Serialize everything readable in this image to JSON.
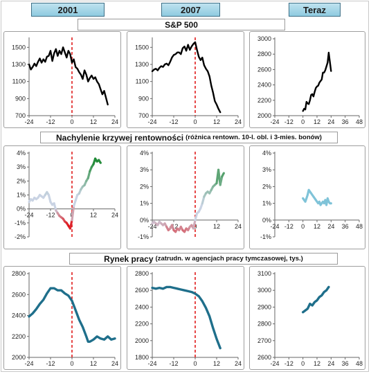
{
  "headers": {
    "col1": "2001",
    "col2": "2007",
    "col3": "Teraz"
  },
  "sections": {
    "sp500": {
      "title": "S&P 500",
      "subtitle": ""
    },
    "yield": {
      "title": "Nachylenie krzywej rentowności",
      "subtitle": "(różnica rentown. 10-l. obl. i 3-mies. bonów)"
    },
    "labor": {
      "title": "Rynek pracy",
      "subtitle": "(zatrudn. w agencjach pracy tymczasowej, tys.)"
    }
  },
  "colors": {
    "sp500_line": "#000000",
    "labor_line": "#1f6f8b",
    "current_yield_line": "#7fc3d8",
    "yield_gradient_low": "#e0151b",
    "yield_gradient_mid": "#c9d3e3",
    "yield_gradient_high": "#1f8a35",
    "event_line": "#e01a1a"
  },
  "chart_data": [
    {
      "id": "sp500-2001",
      "type": "line",
      "xlim": [
        -24,
        24
      ],
      "xticks": [
        -24,
        -12,
        0,
        12,
        24
      ],
      "ylim": [
        700,
        1600
      ],
      "yticks": [
        700,
        900,
        1100,
        1300,
        1500
      ],
      "event_line_x": 0,
      "style": "black",
      "x": [
        -24,
        -23,
        -22,
        -21,
        -20,
        -19,
        -18,
        -17,
        -16,
        -15,
        -14,
        -13,
        -12,
        -11,
        -10,
        -9,
        -8,
        -7,
        -6,
        -5,
        -4,
        -3,
        -2,
        -1,
        0,
        1,
        2,
        3,
        4,
        5,
        6,
        7,
        8,
        9,
        10,
        11,
        12,
        13,
        14,
        15,
        16,
        17,
        18,
        19,
        20
      ],
      "y": [
        1300,
        1240,
        1270,
        1310,
        1280,
        1330,
        1370,
        1320,
        1360,
        1330,
        1390,
        1400,
        1460,
        1340,
        1430,
        1480,
        1400,
        1460,
        1420,
        1500,
        1440,
        1380,
        1460,
        1420,
        1320,
        1360,
        1270,
        1250,
        1210,
        1180,
        1130,
        1230,
        1180,
        1100,
        1140,
        1170,
        1130,
        1150,
        1100,
        1070,
        1010,
        950,
        990,
        910,
        830
      ]
    },
    {
      "id": "sp500-2007",
      "type": "line",
      "xlim": [
        -24,
        24
      ],
      "xticks": [
        -24,
        -12,
        0,
        12,
        24
      ],
      "ylim": [
        700,
        1600
      ],
      "yticks": [
        700,
        900,
        1100,
        1300,
        1500
      ],
      "event_line_x": 0,
      "style": "black",
      "x": [
        -24,
        -23,
        -22,
        -21,
        -20,
        -19,
        -18,
        -17,
        -16,
        -15,
        -14,
        -13,
        -12,
        -11,
        -10,
        -9,
        -8,
        -7,
        -6,
        -5,
        -4,
        -3,
        -2,
        -1,
        0,
        1,
        2,
        3,
        4,
        5,
        6,
        7,
        8,
        9,
        10,
        11,
        12,
        13,
        14
      ],
      "y": [
        1220,
        1240,
        1250,
        1230,
        1260,
        1280,
        1270,
        1300,
        1310,
        1290,
        1330,
        1380,
        1410,
        1420,
        1440,
        1440,
        1420,
        1490,
        1510,
        1460,
        1530,
        1470,
        1510,
        1540,
        1560,
        1470,
        1390,
        1350,
        1380,
        1290,
        1250,
        1220,
        1160,
        1050,
        970,
        870,
        830,
        780,
        740
      ]
    },
    {
      "id": "sp500-now",
      "type": "line",
      "xlim": [
        -24,
        48
      ],
      "xticks": [
        -24,
        -12,
        0,
        12,
        24,
        36,
        48
      ],
      "ylim": [
        2000,
        3000
      ],
      "yticks": [
        2000,
        2200,
        2400,
        2600,
        2800,
        3000
      ],
      "style": "black",
      "x": [
        0,
        1,
        2,
        3,
        4,
        5,
        6,
        7,
        8,
        9,
        10,
        11,
        12,
        13,
        14,
        15,
        16,
        17,
        18,
        19,
        20,
        21,
        22,
        23,
        24
      ],
      "y": [
        2060,
        2090,
        2080,
        2180,
        2160,
        2150,
        2200,
        2270,
        2280,
        2250,
        2310,
        2360,
        2380,
        2390,
        2430,
        2450,
        2470,
        2560,
        2560,
        2590,
        2640,
        2690,
        2820,
        2700,
        2580
      ]
    },
    {
      "id": "yield-2001",
      "type": "line",
      "xlim": [
        -24,
        24
      ],
      "xticks": [
        -24,
        -12,
        0,
        12,
        24
      ],
      "ylim": [
        -2,
        4
      ],
      "yticks": [
        -2,
        -1,
        0,
        1,
        2,
        3,
        4
      ],
      "yformat": "percent",
      "event_line_x": 0,
      "style": "gradient",
      "x": [
        -24,
        -23,
        -22,
        -21,
        -20,
        -19,
        -18,
        -17,
        -16,
        -15,
        -14,
        -13,
        -12,
        -11,
        -10,
        -9,
        -8,
        -7,
        -6,
        -5,
        -4,
        -3,
        -2,
        -1,
        0,
        1,
        2,
        3,
        4,
        5,
        6,
        7,
        8,
        9,
        10,
        11,
        12,
        13,
        14,
        15,
        16
      ],
      "y": [
        0.5,
        0.7,
        0.6,
        0.8,
        0.7,
        0.8,
        1.0,
        0.9,
        0.8,
        1.0,
        1.2,
        1.0,
        0.5,
        0.3,
        0.4,
        -0.1,
        -0.3,
        -0.5,
        -0.6,
        -0.7,
        -0.9,
        -1.0,
        -1.2,
        -1.4,
        -0.8,
        0.2,
        0.6,
        1.0,
        1.1,
        1.4,
        1.6,
        1.7,
        2.0,
        2.2,
        2.7,
        3.0,
        3.2,
        3.6,
        3.4,
        3.5,
        3.3
      ]
    },
    {
      "id": "yield-2007",
      "type": "line",
      "xlim": [
        -24,
        24
      ],
      "xticks": [
        -24,
        -12,
        0,
        12,
        24
      ],
      "ylim": [
        -1,
        4
      ],
      "yticks": [
        -1,
        0,
        1,
        2,
        3,
        4
      ],
      "yformat": "percent",
      "event_line_x": 0,
      "style": "gradient",
      "x": [
        -24,
        -23,
        -22,
        -21,
        -20,
        -19,
        -18,
        -17,
        -16,
        -15,
        -14,
        -13,
        -12,
        -11,
        -10,
        -9,
        -8,
        -7,
        -6,
        -5,
        -4,
        -3,
        -2,
        -1,
        0,
        1,
        2,
        3,
        4,
        5,
        6,
        7,
        8,
        9,
        10,
        11,
        12,
        13,
        14,
        15,
        16
      ],
      "y": [
        -0.2,
        -0.1,
        -0.2,
        -0.3,
        -0.1,
        -0.2,
        -0.3,
        -0.2,
        -0.4,
        -0.6,
        -0.5,
        -0.3,
        -0.6,
        -0.7,
        -0.5,
        -0.6,
        -0.4,
        -0.6,
        -0.7,
        -0.5,
        -0.6,
        -0.4,
        -0.3,
        -0.5,
        0.0,
        0.4,
        0.5,
        0.7,
        1.0,
        1.4,
        1.6,
        1.7,
        1.6,
        1.8,
        2.0,
        2.1,
        2.2,
        3.0,
        2.1,
        2.6,
        2.8
      ]
    },
    {
      "id": "yield-now",
      "type": "line",
      "xlim": [
        -24,
        48
      ],
      "xticks": [
        -24,
        -12,
        0,
        12,
        24,
        36,
        48
      ],
      "ylim": [
        -1,
        4
      ],
      "yticks": [
        -1,
        0,
        1,
        2,
        3,
        4
      ],
      "yformat": "percent",
      "style": "lightblue",
      "x": [
        0,
        1,
        2,
        3,
        4,
        5,
        6,
        7,
        8,
        9,
        10,
        11,
        12,
        13,
        14,
        15,
        16,
        17,
        18,
        19,
        20,
        21,
        22,
        23,
        24
      ],
      "y": [
        1.3,
        1.2,
        1.1,
        1.3,
        1.5,
        1.8,
        1.7,
        1.6,
        1.5,
        1.4,
        1.3,
        1.2,
        1.1,
        1.0,
        1.1,
        0.9,
        1.0,
        1.1,
        1.0,
        1.2,
        0.9,
        1.3,
        1.1,
        1.0,
        1.0
      ]
    },
    {
      "id": "labor-2001",
      "type": "line",
      "xlim": [
        -24,
        24
      ],
      "xticks": [
        -24,
        -12,
        0,
        12,
        24
      ],
      "ylim": [
        2000,
        2800
      ],
      "yticks": [
        2000,
        2200,
        2400,
        2600,
        2800
      ],
      "event_line_x": 0,
      "style": "teal",
      "x": [
        -24,
        -22,
        -20,
        -18,
        -16,
        -14,
        -12,
        -10,
        -8,
        -6,
        -4,
        -2,
        0,
        2,
        4,
        6,
        8,
        9,
        10,
        12,
        14,
        16,
        18,
        20,
        22,
        24
      ],
      "y": [
        2390,
        2420,
        2460,
        2510,
        2550,
        2610,
        2660,
        2660,
        2640,
        2640,
        2610,
        2590,
        2540,
        2450,
        2360,
        2290,
        2200,
        2150,
        2150,
        2170,
        2200,
        2180,
        2170,
        2200,
        2170,
        2180
      ]
    },
    {
      "id": "labor-2007",
      "type": "line",
      "xlim": [
        -24,
        24
      ],
      "xticks": [
        -24,
        -12,
        0,
        12,
        24
      ],
      "ylim": [
        1800,
        2800
      ],
      "yticks": [
        1800,
        2000,
        2200,
        2400,
        2600,
        2800
      ],
      "event_line_x": 0,
      "style": "teal",
      "x": [
        -24,
        -22,
        -20,
        -18,
        -16,
        -14,
        -12,
        -10,
        -8,
        -6,
        -4,
        -2,
        0,
        2,
        4,
        6,
        8,
        10,
        12,
        14
      ],
      "y": [
        2630,
        2620,
        2630,
        2620,
        2640,
        2640,
        2630,
        2620,
        2610,
        2600,
        2590,
        2580,
        2560,
        2530,
        2470,
        2390,
        2290,
        2150,
        2020,
        1910
      ]
    },
    {
      "id": "labor-now",
      "type": "line",
      "xlim": [
        -24,
        48
      ],
      "xticks": [
        -24,
        -12,
        0,
        12,
        24,
        36,
        48
      ],
      "ylim": [
        2600,
        3100
      ],
      "yticks": [
        2600,
        2700,
        2800,
        2900,
        3000,
        3100
      ],
      "style": "teal",
      "x": [
        0,
        2,
        4,
        6,
        8,
        10,
        12,
        14,
        16,
        18,
        20,
        22
      ],
      "y": [
        2870,
        2880,
        2890,
        2920,
        2910,
        2930,
        2940,
        2960,
        2970,
        2990,
        3000,
        3020
      ]
    }
  ]
}
